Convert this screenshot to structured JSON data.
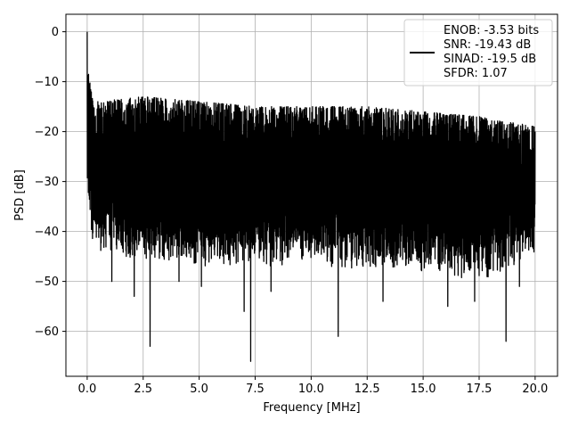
{
  "chart_data": {
    "type": "line",
    "title": "",
    "xlabel": "Frequency [MHz]",
    "ylabel": "PSD [dB]",
    "xlim": [
      -0.95,
      21.0
    ],
    "ylim": [
      -69.0,
      3.5
    ],
    "xticks": [
      0.0,
      2.5,
      5.0,
      7.5,
      10.0,
      12.5,
      15.0,
      17.5,
      20.0
    ],
    "xtick_labels": [
      "0.0",
      "2.5",
      "5.0",
      "7.5",
      "10.0",
      "12.5",
      "15.0",
      "17.5",
      "20.0"
    ],
    "yticks": [
      0,
      -10,
      -20,
      -30,
      -40,
      -50,
      -60
    ],
    "ytick_labels": [
      "0",
      "−10",
      "−20",
      "−30",
      "−40",
      "−50",
      "−60"
    ],
    "grid": true,
    "legend_position": "top-right",
    "series": [
      {
        "name": "ENOB: -3.53 bits\nSNR: -19.43 dB\nSINAD: -19.5 dB\nSFDR: 1.07",
        "color": "#000000",
        "freq_range_mhz": [
          0.0,
          20.0
        ],
        "peak": {
          "x": 0.0,
          "y": 0.0
        },
        "envelope": [
          {
            "x": 0.5,
            "upper": -14,
            "lower": -44
          },
          {
            "x": 2.5,
            "upper": -13,
            "lower": -46
          },
          {
            "x": 5.0,
            "upper": -14,
            "lower": -47
          },
          {
            "x": 7.5,
            "upper": -15,
            "lower": -47
          },
          {
            "x": 10.0,
            "upper": -15,
            "lower": -47
          },
          {
            "x": 12.5,
            "upper": -15,
            "lower": -48
          },
          {
            "x": 15.0,
            "upper": -16,
            "lower": -48
          },
          {
            "x": 17.5,
            "upper": -17,
            "lower": -50
          },
          {
            "x": 20.0,
            "upper": -19,
            "lower": -45
          }
        ],
        "notable_dips": [
          {
            "x": 1.1,
            "y": -50
          },
          {
            "x": 2.1,
            "y": -53
          },
          {
            "x": 2.8,
            "y": -63
          },
          {
            "x": 4.1,
            "y": -50
          },
          {
            "x": 5.1,
            "y": -51
          },
          {
            "x": 7.0,
            "y": -56
          },
          {
            "x": 7.3,
            "y": -66
          },
          {
            "x": 8.2,
            "y": -52
          },
          {
            "x": 11.2,
            "y": -61
          },
          {
            "x": 13.2,
            "y": -54
          },
          {
            "x": 16.1,
            "y": -55
          },
          {
            "x": 17.3,
            "y": -54
          },
          {
            "x": 18.7,
            "y": -62
          },
          {
            "x": 19.3,
            "y": -51
          }
        ]
      }
    ]
  }
}
